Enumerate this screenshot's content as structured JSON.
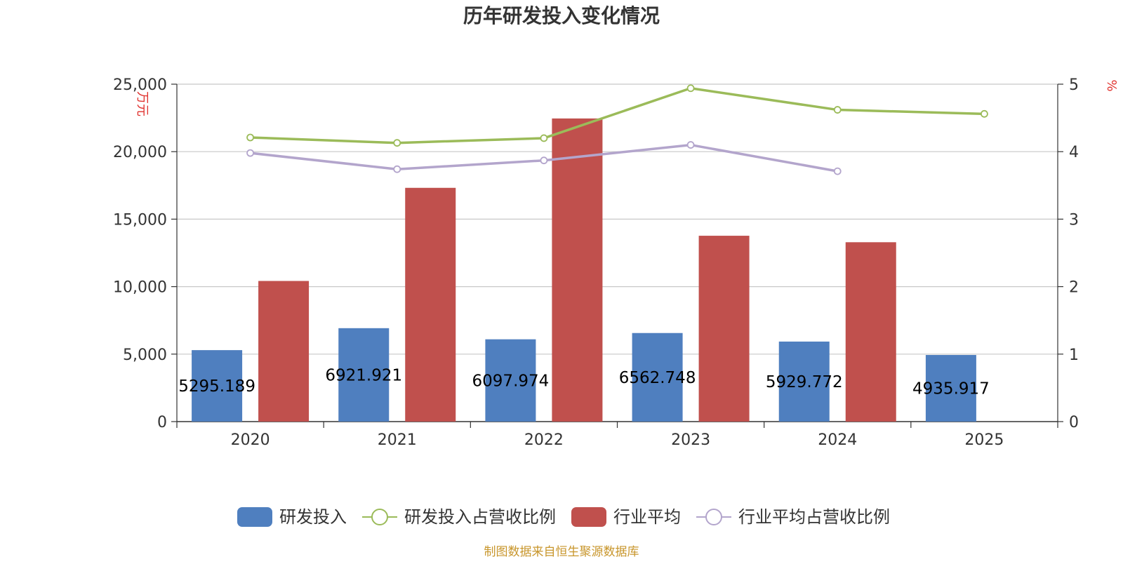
{
  "chart_data": {
    "type": "bar",
    "title": "历年研发投入变化情况",
    "categories": [
      "2020",
      "2021",
      "2022",
      "2023",
      "2024",
      "2025"
    ],
    "y_left": {
      "label": "万元",
      "ylim": [
        0,
        25000
      ],
      "ticks": [
        "0",
        "5,000",
        "10,000",
        "15,000",
        "20,000",
        "25,000"
      ],
      "tick_values": [
        0,
        5000,
        10000,
        15000,
        20000,
        25000
      ]
    },
    "y_right": {
      "label": "%",
      "ylim": [
        0,
        5
      ],
      "ticks": [
        "0",
        "1",
        "2",
        "3",
        "4",
        "5"
      ],
      "tick_values": [
        0,
        1,
        2,
        3,
        4,
        5
      ]
    },
    "series": [
      {
        "name": "研发投入",
        "kind": "bar",
        "axis": "left",
        "color": "#4f7fbf",
        "values": [
          5295.189,
          6921.921,
          6097.974,
          6562.748,
          5929.772,
          4935.917
        ],
        "labels": [
          "5295.189",
          "6921.921",
          "6097.974",
          "6562.748",
          "5929.772",
          "4935.917"
        ]
      },
      {
        "name": "研发投入占营收比例",
        "kind": "line",
        "axis": "right",
        "color": "#9bbb59",
        "values": [
          4.21,
          4.13,
          4.2,
          4.94,
          4.62,
          4.56
        ]
      },
      {
        "name": "行业平均",
        "kind": "bar",
        "axis": "left",
        "color": "#c0504d",
        "values": [
          10420,
          17320,
          22460,
          13770,
          13290,
          null
        ]
      },
      {
        "name": "行业平均占营收比例",
        "kind": "line",
        "axis": "right",
        "color": "#b3a5cc",
        "values": [
          3.98,
          3.74,
          3.87,
          4.1,
          3.71,
          null
        ]
      }
    ],
    "legend_position": "bottom",
    "grid": true
  },
  "footer": {
    "source": "制图数据来自恒生聚源数据库"
  },
  "colors": {
    "title": "#333333",
    "axis_label": "#e0312d",
    "grid": "#c8c8c8",
    "tick_text": "#333333",
    "footer": "#c8962c"
  }
}
